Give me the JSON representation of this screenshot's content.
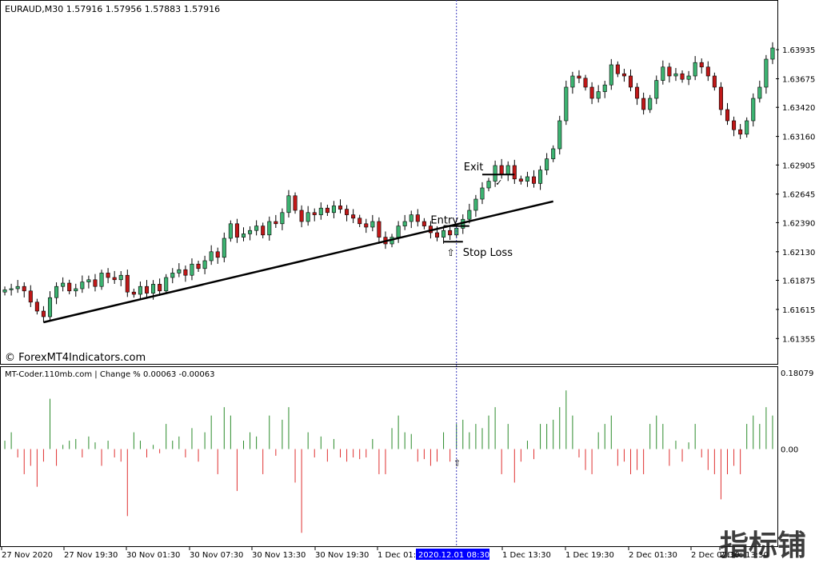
{
  "header": {
    "symbol_info": "EURAUD,M30  1.57916 1.57956 1.57883 1.57916",
    "indicator_info": "MT-Coder.110mb.com | Change % 0.00063 -0.00063"
  },
  "watermark": "© ForexMT4Indicators.com",
  "corner_logo": "指标铺",
  "colors": {
    "bull": "#3cb371",
    "bear": "#c01818",
    "hist_up": "#2a8a2a",
    "hist_down": "#e03030",
    "crosshair": "#4040c0",
    "time_highlight_bg": "#0000ff"
  },
  "annotations": {
    "entry": "Entry",
    "exit": "Exit",
    "stop_loss": "Stop Loss"
  },
  "chart_data": [
    {
      "type": "candlestick",
      "title": "EURAUD,M30",
      "ylim": [
        1.6115,
        1.6435
      ],
      "price_ticks": [
        "1.63935",
        "1.63675",
        "1.63420",
        "1.63160",
        "1.62905",
        "1.62645",
        "1.62390",
        "1.62130",
        "1.61875",
        "1.61615",
        "1.61355"
      ],
      "x_ticks": [
        "27 Nov 2020",
        "27 Nov 19:30",
        "30 Nov 01:30",
        "30 Nov 07:30",
        "30 Nov 13:30",
        "30 Nov 19:30",
        "1 Dec 01:3",
        "2020.12.01 08:30",
        "1 Dec 13:30",
        "1 Dec 19:30",
        "2 Dec 01:30",
        "2 Dec 07:30",
        "2 Dec 13:30"
      ],
      "closes": [
        1.6179,
        1.618,
        1.6182,
        1.6178,
        1.6168,
        1.616,
        1.6155,
        1.6172,
        1.6182,
        1.6185,
        1.6178,
        1.618,
        1.6186,
        1.6188,
        1.6182,
        1.6194,
        1.619,
        1.6188,
        1.6192,
        1.6177,
        1.6175,
        1.6182,
        1.6176,
        1.6184,
        1.6178,
        1.619,
        1.6194,
        1.6197,
        1.6192,
        1.6202,
        1.6198,
        1.6205,
        1.6213,
        1.6208,
        1.6225,
        1.6238,
        1.6226,
        1.6229,
        1.6232,
        1.6236,
        1.6228,
        1.624,
        1.6238,
        1.6248,
        1.6263,
        1.625,
        1.624,
        1.6248,
        1.6246,
        1.6252,
        1.6248,
        1.6254,
        1.6251,
        1.6246,
        1.6243,
        1.6238,
        1.6235,
        1.624,
        1.6226,
        1.622,
        1.6226,
        1.6236,
        1.624,
        1.6246,
        1.624,
        1.6236,
        1.623,
        1.6226,
        1.6232,
        1.6228,
        1.6234,
        1.6242,
        1.625,
        1.626,
        1.627,
        1.6276,
        1.629,
        1.6282,
        1.629,
        1.6278,
        1.6276,
        1.628,
        1.6274,
        1.6286,
        1.6296,
        1.6305,
        1.633,
        1.636,
        1.637,
        1.6368,
        1.636,
        1.635,
        1.6356,
        1.6362,
        1.638,
        1.6372,
        1.637,
        1.636,
        1.635,
        1.634,
        1.635,
        1.6366,
        1.6378,
        1.637,
        1.6372,
        1.6367,
        1.637,
        1.6382,
        1.6378,
        1.637,
        1.636,
        1.634,
        1.633,
        1.6322,
        1.6318,
        1.633,
        1.635,
        1.636,
        1.6385,
        1.6395
      ],
      "indicator": {
        "name": "Change %",
        "ylim": [
          -0.115,
          0.095
        ],
        "ticks": [
          "0.18079",
          "0.00"
        ],
        "values": [
          0.01,
          0.02,
          -0.01,
          -0.03,
          -0.02,
          -0.045,
          -0.015,
          0.06,
          -0.02,
          0.005,
          0.01,
          0.012,
          -0.01,
          0.015,
          0.008,
          -0.02,
          0.01,
          -0.01,
          -0.015,
          -0.08,
          0.02,
          0.01,
          -0.01,
          0.005,
          -0.005,
          0.03,
          0.01,
          0.015,
          -0.01,
          0.025,
          -0.015,
          0.02,
          0.04,
          -0.03,
          0.05,
          0.04,
          -0.05,
          0.01,
          0.02,
          0.015,
          -0.03,
          0.04,
          -0.008,
          0.035,
          0.05,
          -0.04,
          -0.1,
          0.02,
          -0.01,
          0.015,
          -0.015,
          0.012,
          -0.01,
          -0.015,
          -0.01,
          -0.012,
          -0.01,
          0.012,
          -0.03,
          -0.03,
          0.025,
          0.04,
          0.02,
          0.018,
          -0.015,
          -0.012,
          -0.02,
          -0.015,
          0.02,
          -0.015,
          0.03,
          0.035,
          0.02,
          0.03,
          0.025,
          0.04,
          0.05,
          -0.03,
          0.03,
          -0.04,
          -0.015,
          0.01,
          -0.012,
          0.03,
          0.03,
          0.035,
          0.05,
          0.07,
          0.04,
          -0.01,
          -0.025,
          -0.03,
          0.02,
          0.03,
          0.04,
          -0.02,
          -0.015,
          -0.03,
          -0.025,
          -0.03,
          0.03,
          0.04,
          0.03,
          -0.02,
          0.01,
          -0.015,
          0.008,
          0.03,
          -0.01,
          -0.025,
          -0.03,
          -0.06,
          -0.03,
          -0.02,
          -0.03,
          0.03,
          0.04,
          0.03,
          0.05,
          0.04
        ]
      }
    }
  ]
}
